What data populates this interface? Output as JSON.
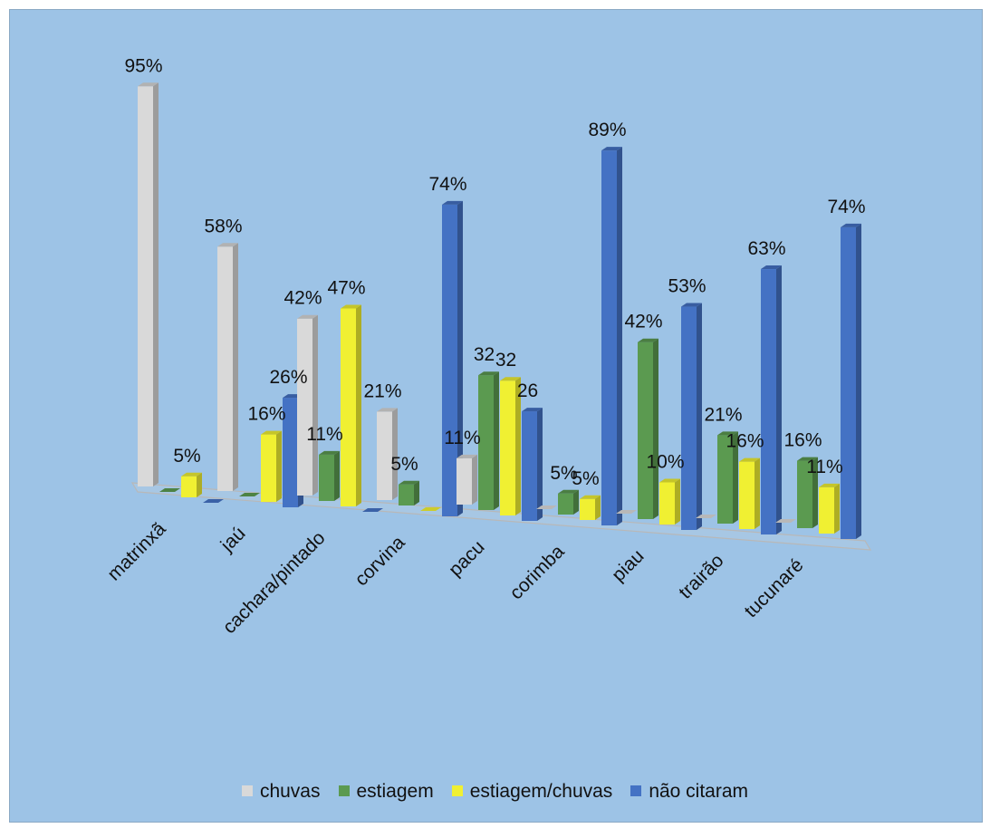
{
  "chart_data": {
    "type": "bar",
    "title": "",
    "xlabel": "",
    "ylabel": "",
    "ylim": [
      0,
      100
    ],
    "grid": false,
    "legend_position": "bottom",
    "categories": [
      "matrinxã",
      "jaú",
      "cachara/pintado",
      "corvina",
      "pacu",
      "corimba",
      "piau",
      "trairão",
      "tucunaré"
    ],
    "series": [
      {
        "name": "chuvas",
        "color": "#d9d9d9",
        "values": [
          95,
          58,
          42,
          21,
          11,
          0,
          0,
          0,
          0
        ],
        "labels": [
          "95%",
          "58%",
          "42%",
          "21%",
          "11%",
          "",
          "",
          "",
          ""
        ]
      },
      {
        "name": "estiagem",
        "color": "#5b9a50",
        "values": [
          0,
          0,
          11,
          5,
          32,
          5,
          42,
          21,
          16
        ],
        "labels": [
          "",
          "",
          "11%",
          "5%",
          "32",
          "5%",
          "42%",
          "21%",
          "16%"
        ]
      },
      {
        "name": "estiagem/chuvas",
        "color": "#f0f032",
        "values": [
          5,
          16,
          47,
          0,
          32,
          5,
          10,
          16,
          11
        ],
        "labels": [
          "5%",
          "16%",
          "47%",
          "",
          "32",
          "5%",
          "10%",
          "16%",
          "11%"
        ]
      },
      {
        "name": "não citaram",
        "color": "#4472c4",
        "values": [
          0,
          26,
          0,
          74,
          26,
          89,
          53,
          63,
          74
        ],
        "labels": [
          "",
          "26%",
          "",
          "74%",
          "26",
          "89%",
          "53%",
          "63%",
          "74%"
        ]
      }
    ]
  }
}
